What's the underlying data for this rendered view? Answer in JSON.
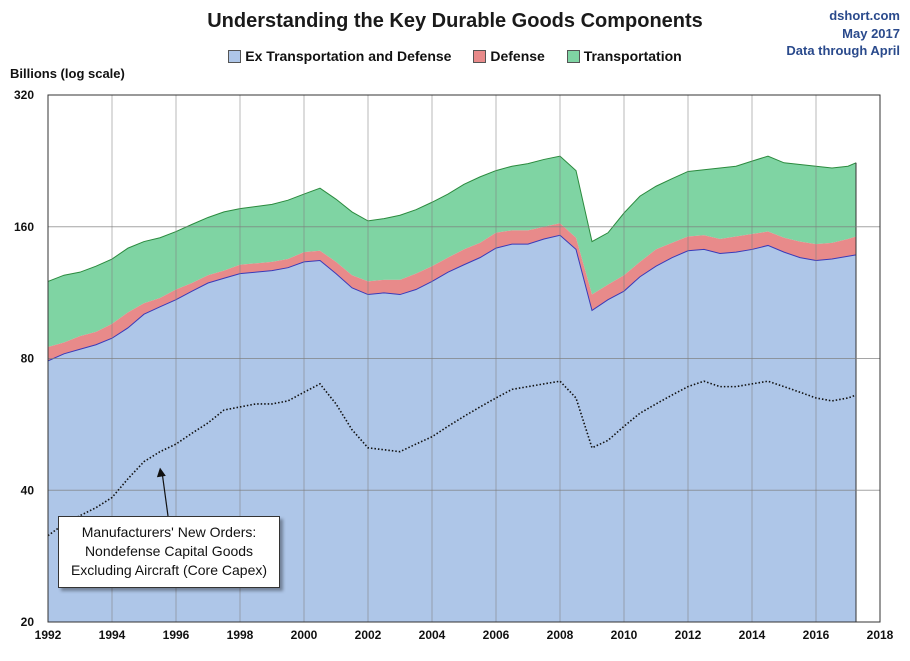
{
  "header": {
    "title": "Understanding the Key Durable Goods Components",
    "source": "dshort.com",
    "date": "May 2017",
    "note": "Data through April"
  },
  "annotation": {
    "lines": [
      "Manufacturers' New Orders:",
      "Nondefense Capital Goods",
      "Excluding Aircraft (Core Capex)"
    ]
  },
  "colors": {
    "ex_transport": "#aec6e8",
    "ex_transport_line": "#3a3ab8",
    "defense": "#e88a8a",
    "transportation": "#7fd4a3",
    "transportation_line": "#2b8a3e",
    "core_capex": "#111111",
    "gridline": "#7f7f7f",
    "title_blue": "#2a4a8c"
  },
  "chart_data": {
    "type": "area",
    "title": "Understanding the Key Durable Goods Components",
    "ylabel": "Billions (log scale)",
    "y_scale": "log2",
    "ylim": [
      20,
      320
    ],
    "y_ticks": [
      20,
      40,
      80,
      160,
      320
    ],
    "xlim": [
      1992,
      2018
    ],
    "x_ticks": [
      1992,
      1994,
      1996,
      1998,
      2000,
      2002,
      2004,
      2006,
      2008,
      2010,
      2012,
      2014,
      2016,
      2018
    ],
    "legend": {
      "position": "top-center",
      "entries": [
        "Ex Transportation and Defense",
        "Defense",
        "Transportation"
      ]
    },
    "grid": {
      "horizontal": true,
      "vertical": true
    },
    "x": [
      1992.0,
      1992.5,
      1993.0,
      1993.5,
      1994.0,
      1994.5,
      1995.0,
      1995.5,
      1996.0,
      1996.5,
      1997.0,
      1997.5,
      1998.0,
      1998.5,
      1999.0,
      1999.5,
      2000.0,
      2000.5,
      2001.0,
      2001.5,
      2002.0,
      2002.5,
      2003.0,
      2003.5,
      2004.0,
      2004.5,
      2005.0,
      2005.5,
      2006.0,
      2006.5,
      2007.0,
      2007.5,
      2008.0,
      2008.5,
      2009.0,
      2009.5,
      2010.0,
      2010.5,
      2011.0,
      2011.5,
      2012.0,
      2012.5,
      2013.0,
      2013.5,
      2014.0,
      2014.5,
      2015.0,
      2015.5,
      2016.0,
      2016.5,
      2017.0,
      2017.25
    ],
    "series": [
      {
        "name": "Ex Transportation and Defense",
        "kind": "stack-base",
        "values": [
          79,
          82,
          84,
          86,
          89,
          94,
          101,
          105,
          109,
          114,
          119,
          122,
          125,
          126,
          127,
          129,
          133,
          134,
          125,
          116,
          112,
          113,
          112,
          115,
          120,
          126,
          131,
          136,
          143,
          146,
          146,
          150,
          153,
          142,
          103,
          109,
          114,
          123,
          130,
          136,
          141,
          142,
          139,
          140,
          142,
          145,
          140,
          136,
          134,
          135,
          137,
          138
        ]
      },
      {
        "name": "Defense",
        "kind": "stack-total-with-base",
        "values": [
          85,
          87,
          90,
          92,
          96,
          102,
          107,
          110,
          115,
          119,
          124,
          127,
          131,
          132,
          133,
          135,
          140,
          141,
          133,
          124,
          120,
          121,
          121,
          125,
          130,
          136,
          142,
          147,
          155,
          157,
          157,
          160,
          163,
          151,
          112,
          118,
          124,
          133,
          142,
          147,
          152,
          153,
          150,
          152,
          154,
          156,
          151,
          148,
          146,
          147,
          150,
          152
        ]
      },
      {
        "name": "Transportation",
        "kind": "stack-total-all",
        "values": [
          120,
          124,
          126,
          130,
          135,
          143,
          148,
          151,
          156,
          162,
          168,
          173,
          176,
          178,
          180,
          184,
          190,
          196,
          185,
          173,
          165,
          167,
          170,
          175,
          182,
          190,
          200,
          208,
          215,
          220,
          223,
          228,
          232,
          215,
          148,
          155,
          172,
          188,
          198,
          206,
          214,
          216,
          218,
          220,
          226,
          232,
          224,
          222,
          220,
          218,
          220,
          224
        ]
      },
      {
        "name": "Manufacturers' New Orders: Nondefense Capital Goods Excluding Aircraft (Core Capex)",
        "kind": "dotted-line",
        "values": [
          31.5,
          33.5,
          35,
          36.5,
          38.5,
          42.5,
          46.5,
          49,
          51,
          54,
          57,
          61,
          62,
          63,
          63,
          64,
          67,
          70,
          63,
          55,
          50,
          49.5,
          49,
          51,
          53,
          56,
          59,
          62,
          65,
          68,
          69,
          70,
          71,
          65,
          50,
          52,
          56,
          60,
          63,
          66,
          69,
          71,
          69,
          69,
          70,
          71,
          69,
          67,
          65,
          64,
          65,
          66
        ]
      }
    ]
  }
}
